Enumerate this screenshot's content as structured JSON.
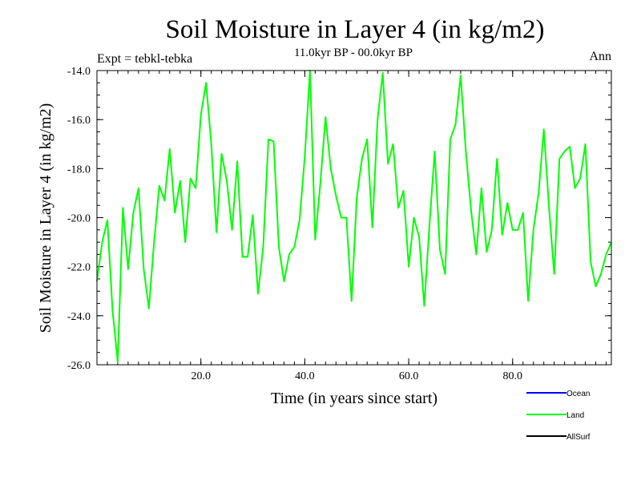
{
  "chart_data": {
    "type": "line",
    "title": "Soil Moisture in Layer 4 (in kg/m2)",
    "subtitle": "11.0kyr BP - 00.0kyr BP",
    "left_annotation": "Expt = tebkl-tebka",
    "right_annotation": "Ann",
    "xlabel": "Time (in years since start)",
    "ylabel": "Soil Moisture in Layer 4 (in kg/m2)",
    "xlim": [
      0,
      99
    ],
    "ylim": [
      -26,
      -14
    ],
    "x_ticks": [
      20,
      40,
      60,
      80
    ],
    "x_tick_labels": [
      "20.0",
      "40.0",
      "60.0",
      "80.0"
    ],
    "y_ticks": [
      -26,
      -24,
      -22,
      -20,
      -18,
      -16,
      -14
    ],
    "y_tick_labels": [
      "-26.0",
      "-24.0",
      "-22.0",
      "-20.0",
      "-18.0",
      "-16.0",
      "-14.0"
    ],
    "x_minor_step": 2,
    "y_minor_step": 0.5,
    "grid": false,
    "legend_position": "bottom-right",
    "legend": [
      {
        "name": "Ocean",
        "color": "#0000ff"
      },
      {
        "name": "Land",
        "color": "#00ff00"
      },
      {
        "name": "AllSurf",
        "color": "#000000"
      }
    ],
    "series": [
      {
        "name": "Land",
        "color": "#00ff00",
        "x": [
          0,
          1,
          2,
          3,
          4,
          5,
          6,
          7,
          8,
          9,
          10,
          11,
          12,
          13,
          14,
          15,
          16,
          17,
          18,
          19,
          20,
          21,
          22,
          23,
          24,
          25,
          26,
          27,
          28,
          29,
          30,
          31,
          32,
          33,
          34,
          35,
          36,
          37,
          38,
          39,
          40,
          41,
          42,
          43,
          44,
          45,
          46,
          47,
          48,
          49,
          50,
          51,
          52,
          53,
          54,
          55,
          56,
          57,
          58,
          59,
          60,
          61,
          62,
          63,
          64,
          65,
          66,
          67,
          68,
          69,
          70,
          71,
          72,
          73,
          74,
          75,
          76,
          77,
          78,
          79,
          80,
          81,
          82,
          83,
          84,
          85,
          86,
          87,
          88,
          89,
          90,
          91,
          92,
          93,
          94,
          95,
          96,
          97,
          98,
          99
        ],
        "values": [
          -22.6,
          -21.0,
          -20.1,
          -23.8,
          -25.9,
          -19.6,
          -22.1,
          -19.8,
          -18.8,
          -22.1,
          -23.7,
          -21.0,
          -18.7,
          -19.3,
          -17.2,
          -19.8,
          -18.5,
          -21.0,
          -18.4,
          -18.8,
          -15.8,
          -14.5,
          -17.0,
          -20.6,
          -17.4,
          -18.5,
          -20.5,
          -17.7,
          -21.6,
          -21.6,
          -19.9,
          -23.1,
          -21.2,
          -16.8,
          -16.9,
          -21.2,
          -22.6,
          -21.5,
          -21.2,
          -20.1,
          -17.5,
          -14.0,
          -20.9,
          -18.6,
          -15.9,
          -18.0,
          -19.1,
          -20.0,
          -20.0,
          -23.4,
          -19.2,
          -17.6,
          -16.8,
          -20.4,
          -16.0,
          -14.1,
          -17.8,
          -17.0,
          -19.6,
          -18.9,
          -22.0,
          -20.0,
          -20.8,
          -23.6,
          -20.3,
          -17.3,
          -21.3,
          -22.3,
          -16.8,
          -16.2,
          -14.2,
          -17.3,
          -19.7,
          -21.5,
          -18.8,
          -21.4,
          -20.5,
          -17.6,
          -20.7,
          -19.4,
          -20.5,
          -20.5,
          -19.8,
          -23.4,
          -20.5,
          -19.0,
          -16.4,
          -19.6,
          -22.3,
          -17.6,
          -17.3,
          -17.1,
          -18.8,
          -18.4,
          -17.0,
          -21.8,
          -22.8,
          -22.3,
          -21.5,
          -21.0
        ]
      }
    ]
  }
}
